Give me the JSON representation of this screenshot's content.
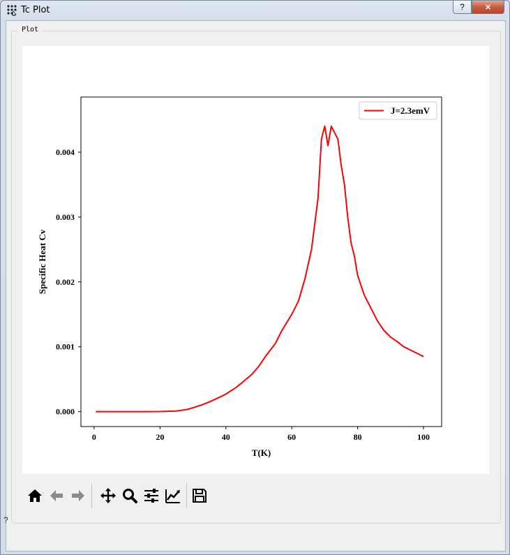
{
  "window": {
    "title": "Tc Plot",
    "help_label": "?",
    "close_label": "✕"
  },
  "group": {
    "title": "Plot"
  },
  "chart_data": {
    "type": "line",
    "xlabel": "T(K)",
    "ylabel": "Specific Heat Cv",
    "xlim": [
      -4,
      105.5
    ],
    "ylim": [
      -0.00023,
      0.00485
    ],
    "x_ticks": [
      0,
      20,
      40,
      60,
      80,
      100
    ],
    "x_tick_labels": [
      "0",
      "20",
      "40",
      "60",
      "80",
      "100"
    ],
    "y_ticks": [
      0.0,
      0.001,
      0.002,
      0.003,
      0.004
    ],
    "y_tick_labels": [
      "0.000",
      "0.001",
      "0.002",
      "0.003",
      "0.004"
    ],
    "grid": false,
    "legend_placement": "upper-right",
    "series": [
      {
        "name": "J=2.3emV",
        "color": "#ff0000",
        "x": [
          0.5,
          5,
          10,
          15,
          20,
          25,
          28,
          30,
          33,
          35,
          38,
          40,
          43,
          45,
          48,
          50,
          52,
          55,
          57,
          60,
          62,
          64,
          66,
          67,
          68,
          69,
          70,
          71,
          72,
          73,
          74,
          75,
          76,
          77,
          78,
          79,
          80,
          82,
          84,
          86,
          88,
          90,
          92,
          94,
          96,
          98,
          100
        ],
        "y": [
          0.0,
          0.0,
          0.0,
          0.0,
          1e-06,
          1e-05,
          3e-05,
          6e-05,
          0.00011,
          0.00015,
          0.00022,
          0.00027,
          0.00037,
          0.00045,
          0.00058,
          0.0007,
          0.00085,
          0.00105,
          0.00125,
          0.0015,
          0.0017,
          0.00205,
          0.0025,
          0.0029,
          0.0033,
          0.0042,
          0.0044,
          0.0041,
          0.0044,
          0.0043,
          0.0042,
          0.0038,
          0.0035,
          0.003,
          0.0026,
          0.0024,
          0.0021,
          0.0018,
          0.0016,
          0.0014,
          0.00125,
          0.00115,
          0.00108,
          0.001,
          0.00095,
          0.0009,
          0.00085
        ]
      }
    ]
  },
  "toolbar": [
    {
      "name": "home-icon",
      "label": "Home"
    },
    {
      "name": "back-icon",
      "label": "Back"
    },
    {
      "name": "forward-icon",
      "label": "Forward"
    },
    {
      "name": "pan-icon",
      "label": "Pan"
    },
    {
      "name": "zoom-icon",
      "label": "Zoom"
    },
    {
      "name": "subplots-icon",
      "label": "Subplots"
    },
    {
      "name": "customize-icon",
      "label": "Customize"
    },
    {
      "name": "save-icon",
      "label": "Save"
    }
  ],
  "status": {
    "help_label": "?"
  }
}
